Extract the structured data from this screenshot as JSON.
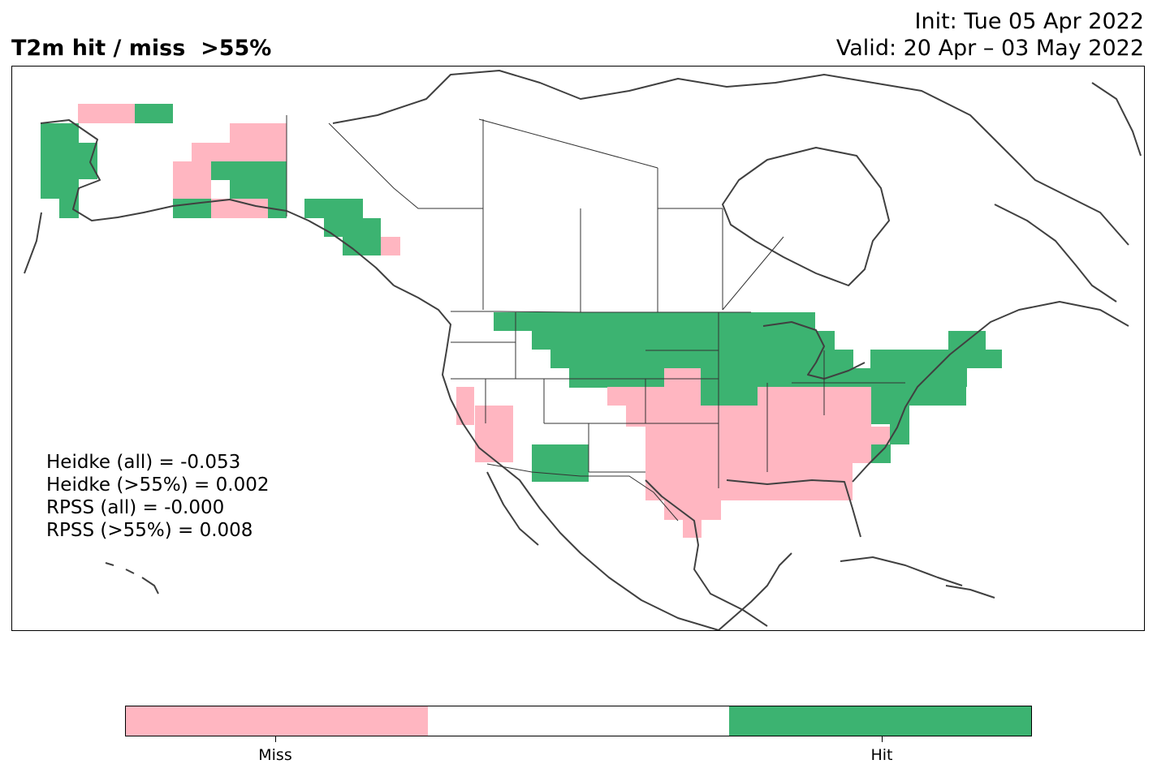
{
  "header": {
    "title": "T2m hit / miss  >55%",
    "init": "Init: Tue 05 Apr 2022",
    "valid": "Valid: 20 Apr – 03 May 2022"
  },
  "stats": {
    "heidke_all": "Heidke (all) = -0.053",
    "heidke_55": "Heidke (>55%) = 0.002",
    "rpss_all": "RPSS (all) = -0.000",
    "rpss_55": "RPSS (>55%) = 0.008"
  },
  "colorbar": {
    "colors": [
      "#ffb6c1",
      "#ffffff",
      "#3cb371"
    ],
    "labels": [
      "Miss",
      "Hit"
    ]
  },
  "colors": {
    "miss": "#ffb6c1",
    "hit": "#3cb371",
    "coast": "#404040",
    "border": "#333333"
  }
}
